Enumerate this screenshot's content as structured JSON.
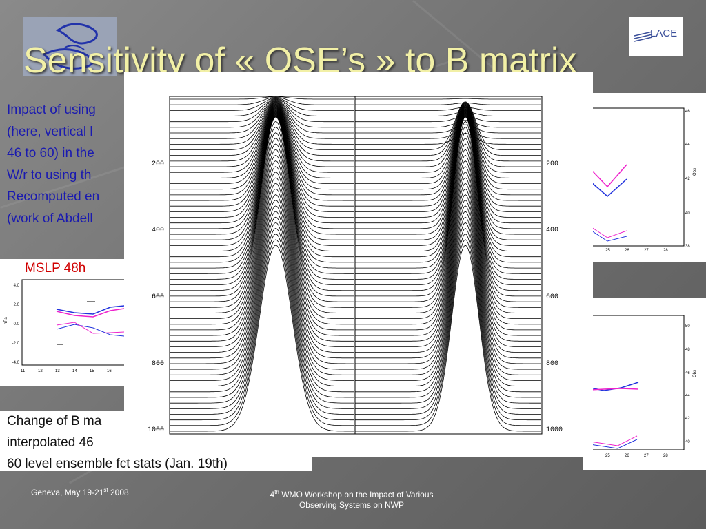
{
  "slide": {
    "title": "Sensitivity of « OSE’s » to B matrix",
    "left_text_lines": [
      "Impact of using",
      "(here, vertical l",
      "46 to 60) in the",
      "W/r to using th",
      "Recomputed en",
      "(work of Abdell"
    ],
    "mslp_label": "MSLP 48h",
    "bottom_text_lines": [
      "Change of B ma",
      "interpolated 46",
      "60 level ensemble fct stats (Jan. 19th)"
    ],
    "logo_right_text": "LACE",
    "footer": {
      "left_prefix": "Geneva, May 19-21",
      "left_sup": "st",
      "left_suffix": "  2008",
      "center_line1_prefix": "4",
      "center_line1_sup": "th",
      "center_line1_suffix": " WMO Workshop on the Impact of Various",
      "center_line2": "Observing Systems on NWP"
    }
  },
  "main_figure": {
    "y_ticks": [
      "200",
      "400",
      "600",
      "800",
      "1000"
    ],
    "curves": 60
  },
  "mslp_chart": {
    "y_ticks": [
      "4.0",
      "2.0",
      "0.0",
      "-2.0",
      "-4.0"
    ],
    "x_ticks": [
      "11",
      "12",
      "13",
      "14",
      "15",
      "16"
    ],
    "ylabel": "hPa"
  },
  "right_top_chart": {
    "y_ticks": [
      "46",
      "44",
      "42",
      "40",
      "38"
    ],
    "x_ticks": [
      "25",
      "26",
      "27",
      "28"
    ],
    "ylabel": "Obs"
  },
  "right_bot_chart": {
    "y_ticks": [
      "50",
      "48",
      "46",
      "44",
      "42",
      "40"
    ],
    "x_ticks": [
      "25",
      "26",
      "27",
      "28"
    ],
    "ylabel": "Obs"
  },
  "colors": {
    "title": "#f2f0a6",
    "body_text": "#1a1ab0",
    "mslp": "#d00000"
  }
}
